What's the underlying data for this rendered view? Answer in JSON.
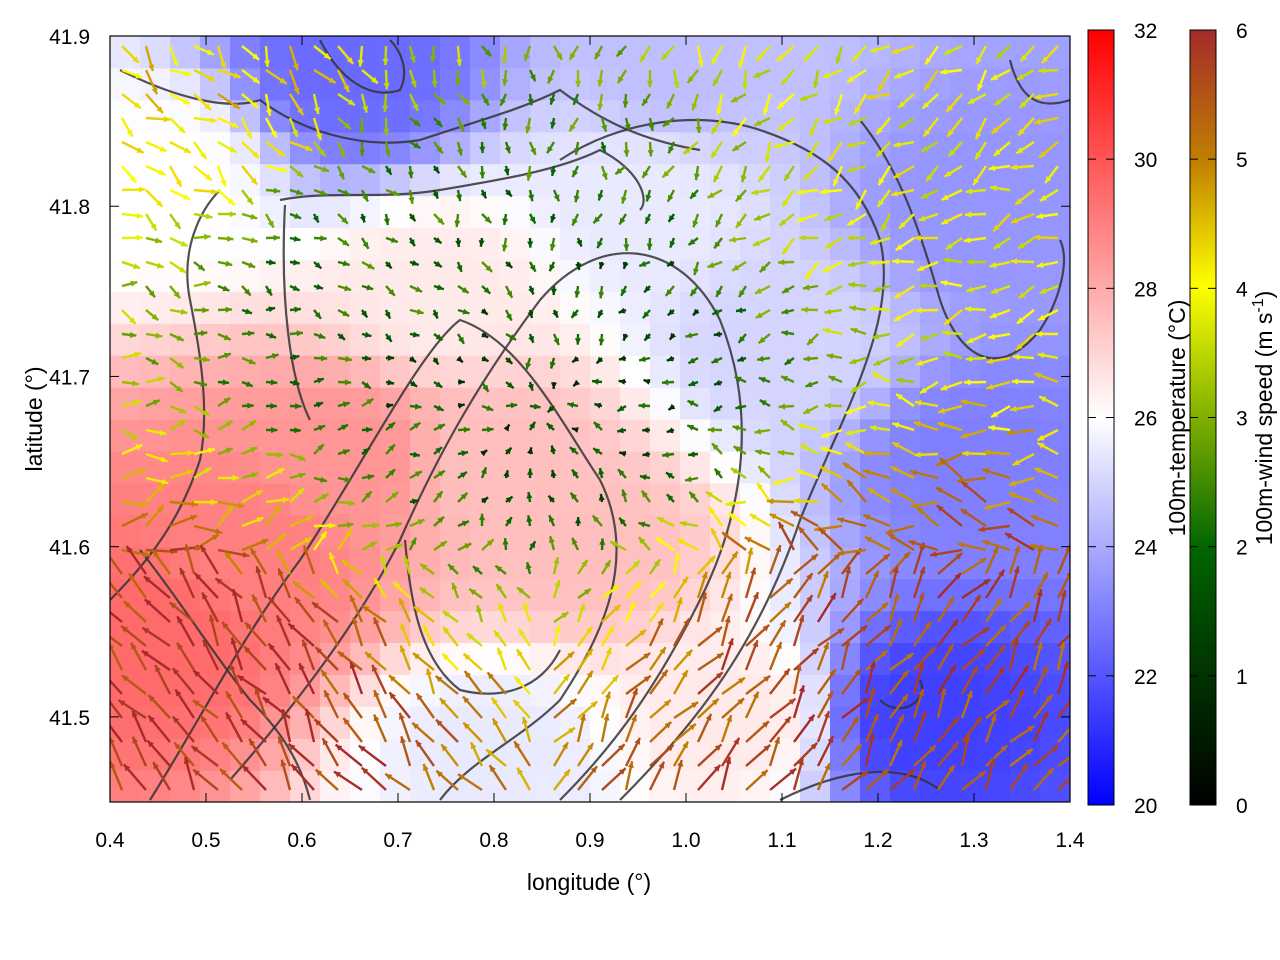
{
  "chart_data": {
    "type": "heatmap",
    "title": "",
    "xlabel": "longitude (°)",
    "ylabel": "latitude (°)",
    "xlim": [
      0.4,
      1.4
    ],
    "ylim": [
      41.45,
      41.9
    ],
    "xticks": [
      0.4,
      0.5,
      0.6,
      0.7,
      0.8,
      0.9,
      1.0,
      1.1,
      1.2,
      1.3,
      1.4
    ],
    "xtick_labels": [
      "0.4",
      "0.5",
      "0.6",
      "0.7",
      "0.8",
      "0.9",
      "1.0",
      "1.1",
      "1.2",
      "1.3",
      "1.4"
    ],
    "yticks": [
      41.5,
      41.6,
      41.7,
      41.8,
      41.9
    ],
    "ytick_labels": [
      "41.5",
      "41.6",
      "41.7",
      "41.8",
      "41.9"
    ],
    "temperature_colorbar": {
      "label": "100m-temperature (°C)",
      "range": [
        20,
        32
      ],
      "ticks": [
        20,
        22,
        24,
        26,
        28,
        30,
        32
      ],
      "tick_labels": [
        "20",
        "22",
        "24",
        "26",
        "28",
        "30",
        "32"
      ],
      "colors": [
        "#0000ff",
        "#ffffff",
        "#ff0000"
      ]
    },
    "wind_colorbar": {
      "label": "100m-wind speed (m s",
      "label_sup": "-1",
      "label_end": ")",
      "range": [
        0,
        6
      ],
      "ticks": [
        0,
        1,
        2,
        3,
        4,
        5,
        6
      ],
      "tick_labels": [
        "0",
        "1",
        "2",
        "3",
        "4",
        "5",
        "6"
      ],
      "colors": [
        "#000000",
        "#006400",
        "#7fb000",
        "#ffff00",
        "#c08000",
        "#a52a2a"
      ]
    },
    "temperature_field_approx": [
      {
        "lon": 0.45,
        "lat": 41.55,
        "temp": 29.5
      },
      {
        "lon": 0.55,
        "lat": 41.6,
        "temp": 29
      },
      {
        "lon": 0.65,
        "lat": 41.65,
        "temp": 28.5
      },
      {
        "lon": 0.8,
        "lat": 41.65,
        "temp": 27.5
      },
      {
        "lon": 0.9,
        "lat": 41.6,
        "temp": 27.5
      },
      {
        "lon": 0.75,
        "lat": 41.75,
        "temp": 26.5
      },
      {
        "lon": 0.95,
        "lat": 41.8,
        "temp": 25.5
      },
      {
        "lon": 0.65,
        "lat": 41.88,
        "temp": 22.5
      },
      {
        "lon": 1.25,
        "lat": 41.5,
        "temp": 21.5
      },
      {
        "lon": 1.3,
        "lat": 41.65,
        "temp": 23
      },
      {
        "lon": 1.3,
        "lat": 41.8,
        "temp": 23.5
      },
      {
        "lon": 1.1,
        "lat": 41.72,
        "temp": 25
      },
      {
        "lon": 1.05,
        "lat": 41.5,
        "temp": 26.5
      },
      {
        "lon": 0.8,
        "lat": 41.48,
        "temp": 25.5
      },
      {
        "lon": 1.0,
        "lat": 41.88,
        "temp": 24.5
      },
      {
        "lon": 0.45,
        "lat": 41.82,
        "temp": 26
      }
    ],
    "wind_field_description_values": [
      {
        "lon": 0.45,
        "lat": 41.5,
        "speed": 5.8
      },
      {
        "lon": 1.2,
        "lat": 41.52,
        "speed": 5.5
      },
      {
        "lon": 0.85,
        "lat": 41.7,
        "speed": 1.0
      },
      {
        "lon": 0.7,
        "lat": 41.78,
        "speed": 1.5
      },
      {
        "lon": 1.3,
        "lat": 41.85,
        "speed": 3.5
      },
      {
        "lon": 0.5,
        "lat": 41.88,
        "speed": 4.0
      }
    ]
  }
}
